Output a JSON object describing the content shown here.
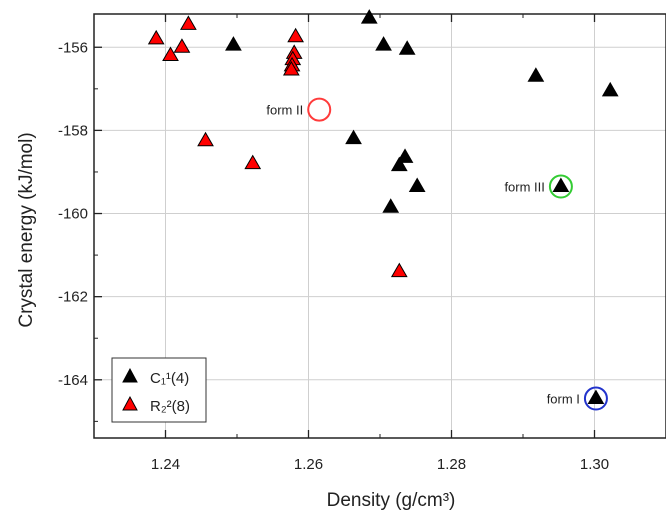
{
  "chart_data": {
    "type": "scatter",
    "xlabel": "Density (g/cm³)",
    "ylabel": "Crystal energy (kJ/mol)",
    "xlim": [
      1.23,
      1.31
    ],
    "ylim": [
      -165.4,
      -155.2
    ],
    "xticks": [
      1.24,
      1.26,
      1.28,
      1.3
    ],
    "yticks": [
      -156,
      -158,
      -160,
      -162,
      -164
    ],
    "xtick_labels": [
      "1.24",
      "1.26",
      "1.28",
      "1.30"
    ],
    "ytick_labels": [
      "-156",
      "-158",
      "-160",
      "-162",
      "-164"
    ],
    "grid": true,
    "legend_position": "bottom-left",
    "series": [
      {
        "legend_label": "C₁¹(4)",
        "color": "#000000",
        "marker": "triangle",
        "x": [
          1.2495,
          1.2685,
          1.2705,
          1.2738,
          1.2663,
          1.2735,
          1.2727,
          1.2752,
          1.2715,
          1.2918,
          1.3022,
          1.2953,
          1.3002
        ],
        "y": [
          -155.95,
          -155.3,
          -155.95,
          -156.05,
          -158.2,
          -158.65,
          -158.85,
          -159.35,
          -159.85,
          -156.7,
          -157.05,
          -159.35,
          -164.45
        ]
      },
      {
        "legend_label": "R₂²(8)",
        "color": "#ff0000",
        "marker": "triangle",
        "x": [
          1.2387,
          1.2432,
          1.2407,
          1.2423,
          1.2582,
          1.258,
          1.2578,
          1.2577,
          1.2576,
          1.2456,
          1.2522,
          1.2727
        ],
        "y": [
          -155.8,
          -155.45,
          -156.2,
          -156.0,
          -155.75,
          -156.15,
          -156.3,
          -156.45,
          -156.55,
          -158.25,
          -158.8,
          -161.4
        ]
      }
    ],
    "annotations": [
      {
        "label": "form II",
        "x": 1.2615,
        "y": -157.5,
        "circle_color": "#ff3b3b"
      },
      {
        "label": "form III",
        "x": 1.2953,
        "y": -159.35,
        "circle_color": "#33cc33"
      },
      {
        "label": "form I",
        "x": 1.3002,
        "y": -164.45,
        "circle_color": "#2233cc"
      }
    ]
  }
}
